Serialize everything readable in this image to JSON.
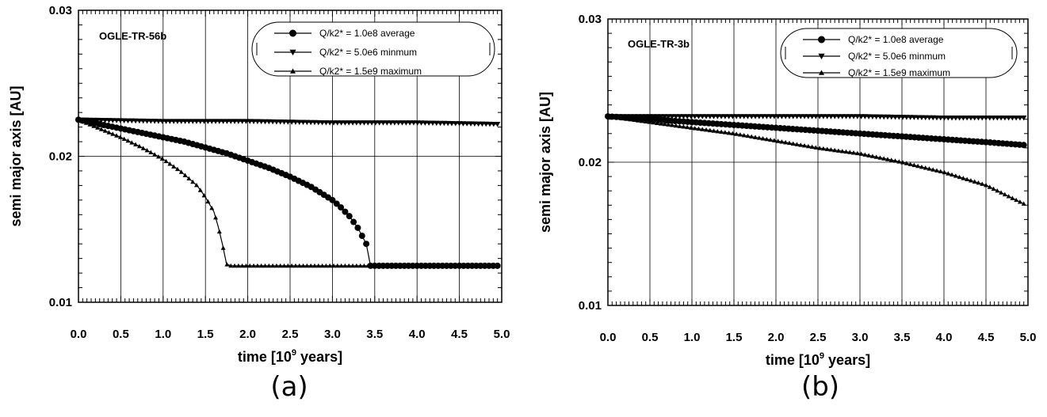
{
  "chart_data": [
    {
      "type": "line",
      "title": "OGLE-TR-56b",
      "caption": "(a)",
      "xlabel_main": "time [10",
      "xlabel_sup": "9",
      "xlabel_tail": " years]",
      "ylabel": "semi major axis [AU]",
      "xlim": [
        0,
        5
      ],
      "ylim": [
        0.01,
        0.03
      ],
      "x_ticks": [
        "0.0",
        "0.5",
        "1.0",
        "1.5",
        "2.0",
        "2.5",
        "3.0",
        "3.5",
        "4.0",
        "4.5",
        "5.0"
      ],
      "y_ticks": [
        "0.01",
        "0.02",
        "0.03"
      ],
      "grid": true,
      "legend_position": "top-right",
      "series": [
        {
          "name": "Q/k2* = 1.0e8 average",
          "marker": "circle",
          "x": [
            0,
            0.25,
            0.5,
            0.75,
            1.0,
            1.25,
            1.5,
            1.75,
            2.0,
            2.25,
            2.5,
            2.75,
            3.0,
            3.1,
            3.2,
            3.3,
            3.4,
            3.45,
            3.5,
            4.0,
            4.5,
            4.95
          ],
          "y": [
            0.0225,
            0.0222,
            0.0219,
            0.0216,
            0.0213,
            0.021,
            0.0206,
            0.0202,
            0.0197,
            0.0192,
            0.0186,
            0.0179,
            0.017,
            0.0165,
            0.0159,
            0.0151,
            0.014,
            0.0125,
            0.0125,
            0.0125,
            0.0125,
            0.0125
          ]
        },
        {
          "name": "Q/k2* = 5.0e6 minmum",
          "marker": "triangle-down",
          "x": [
            0,
            1,
            2,
            3,
            4,
            4.95
          ],
          "y": [
            0.0225,
            0.0224,
            0.0224,
            0.0223,
            0.0223,
            0.0222
          ]
        },
        {
          "name": "Q/k2* = 1.5e9 maximum",
          "marker": "triangle-up",
          "x": [
            0,
            0.25,
            0.5,
            0.75,
            1.0,
            1.2,
            1.4,
            1.5,
            1.6,
            1.65,
            1.7,
            1.75,
            1.8,
            2.0,
            2.5,
            3.0,
            3.5,
            4.0,
            4.5,
            4.95
          ],
          "y": [
            0.0225,
            0.0219,
            0.0213,
            0.0206,
            0.0198,
            0.019,
            0.018,
            0.0172,
            0.0162,
            0.0152,
            0.014,
            0.0126,
            0.0125,
            0.0125,
            0.0125,
            0.0125,
            0.0125,
            0.0125,
            0.0125,
            0.0125
          ]
        }
      ]
    },
    {
      "type": "line",
      "title": "OGLE-TR-3b",
      "caption": "(b)",
      "xlabel_main": "time [10",
      "xlabel_sup": "9",
      "xlabel_tail": " years]",
      "ylabel": "semi major axis [AU]",
      "xlim": [
        0,
        5
      ],
      "ylim": [
        0.01,
        0.03
      ],
      "x_ticks": [
        "0.0",
        "0.5",
        "1.0",
        "1.5",
        "2.0",
        "2.5",
        "3.0",
        "3.5",
        "4.0",
        "4.5",
        "5.0"
      ],
      "y_ticks": [
        "0.01",
        "0.02",
        "0.03"
      ],
      "grid": true,
      "legend_position": "top-right",
      "series": [
        {
          "name": "Q/k2* = 1.0e8 average",
          "marker": "circle",
          "x": [
            0,
            0.5,
            1.0,
            1.5,
            2.0,
            2.5,
            3.0,
            3.5,
            4.0,
            4.5,
            4.95
          ],
          "y": [
            0.0232,
            0.023,
            0.0228,
            0.0226,
            0.0224,
            0.0222,
            0.022,
            0.0218,
            0.0216,
            0.0214,
            0.0212
          ]
        },
        {
          "name": "Q/k2* = 5.0e6 minmum",
          "marker": "triangle-down",
          "x": [
            0,
            1,
            2,
            3,
            4,
            4.95
          ],
          "y": [
            0.0232,
            0.0232,
            0.0232,
            0.0232,
            0.0231,
            0.0231
          ]
        },
        {
          "name": "Q/k2* = 1.5e9 maximum",
          "marker": "triangle-up",
          "x": [
            0,
            0.5,
            1.0,
            1.5,
            2.0,
            2.5,
            3.0,
            3.5,
            4.0,
            4.5,
            4.95
          ],
          "y": [
            0.0232,
            0.0228,
            0.0224,
            0.022,
            0.0215,
            0.021,
            0.0206,
            0.02,
            0.0193,
            0.0184,
            0.0171
          ]
        }
      ]
    }
  ]
}
